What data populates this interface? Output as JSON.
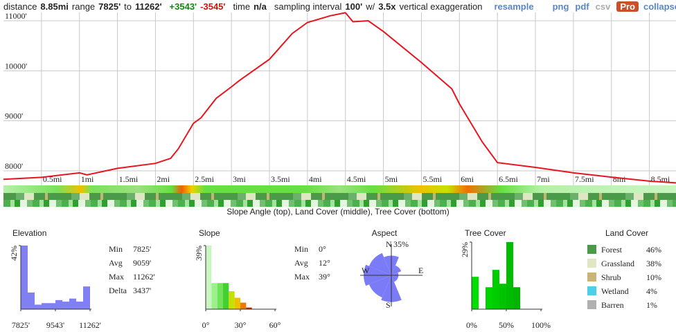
{
  "toolbar": {
    "distance_label": "distance",
    "distance": "8.85mi",
    "range_label": "range",
    "range_min": "7825'",
    "to": "to",
    "range_max": "11262'",
    "gain": "+3543'",
    "loss": "-3545'",
    "time_label": "time",
    "time": "n/a",
    "sampling_label": "sampling interval",
    "interval": "100'",
    "with": "w/",
    "exaggeration": "3.5x",
    "exaggeration_label": "vertical exaggeration",
    "links": [
      "resample",
      "png",
      "pdf",
      "csv"
    ],
    "pro": "Pro",
    "collapse": "collapse"
  },
  "profile": {
    "type": "line",
    "color": "#e8141e",
    "x": [
      0,
      0.5,
      1.0,
      1.1,
      1.5,
      2.0,
      2.2,
      2.3,
      2.5,
      2.6,
      2.8,
      3.0,
      3.1,
      3.5,
      3.8,
      4.0,
      4.3,
      4.5,
      4.6,
      4.8,
      5.0,
      5.5,
      5.9,
      6.0,
      6.3,
      6.5,
      7.0,
      7.5,
      8.0,
      8.5,
      8.85
    ],
    "values": [
      7830,
      7870,
      7960,
      7920,
      8050,
      8150,
      8250,
      8440,
      8950,
      9060,
      9450,
      9680,
      9800,
      10230,
      10745,
      10965,
      11100,
      11160,
      10980,
      11000,
      10785,
      10165,
      9640,
      9340,
      8580,
      8165,
      8070,
      7960,
      7875,
      7795,
      7760
    ],
    "xlim": [
      0,
      8.85
    ],
    "ylim": [
      7710,
      11166
    ],
    "xticks": [
      {
        "value": 0.5,
        "label": "0.5mi"
      },
      {
        "value": 1,
        "label": "1mi"
      },
      {
        "value": 1.5,
        "label": "1.5mi"
      },
      {
        "value": 2,
        "label": "2mi"
      },
      {
        "value": 2.5,
        "label": "2.5mi"
      },
      {
        "value": 3,
        "label": "3mi"
      },
      {
        "value": 3.5,
        "label": "3.5mi"
      },
      {
        "value": 4,
        "label": "4mi"
      },
      {
        "value": 4.5,
        "label": "4.5mi"
      },
      {
        "value": 5,
        "label": "5mi"
      },
      {
        "value": 5.5,
        "label": "5.5mi"
      },
      {
        "value": 6,
        "label": "6mi"
      },
      {
        "value": 6.5,
        "label": "6.5mi"
      },
      {
        "value": 7,
        "label": "7mi"
      },
      {
        "value": 7.5,
        "label": "7.5mi"
      },
      {
        "value": 8,
        "label": "8mi"
      },
      {
        "value": 8.5,
        "label": "8.5mi"
      }
    ],
    "yticks": [
      {
        "value": 8000,
        "label": "8000'"
      },
      {
        "value": 9000,
        "label": "9000'"
      },
      {
        "value": 10000,
        "label": "10000'"
      },
      {
        "value": 11000,
        "label": "11000'"
      }
    ],
    "caption": "Slope Angle (top), Land Cover (middle), Tree Cover (bottom)"
  },
  "elevation": {
    "title": "Elevation",
    "type": "histogram",
    "color": "#8080f2",
    "bins": [
      7825,
      8169,
      8512,
      8856,
      9200,
      9544,
      9887,
      10231,
      10575,
      10918,
      11262
    ],
    "values": [
      42,
      11,
      3,
      4,
      4,
      6,
      5,
      7,
      5,
      15
    ],
    "xlim": [
      7825,
      11262
    ],
    "ylim": [
      0,
      42
    ],
    "yticks": [
      {
        "value": 42,
        "label": "42%"
      }
    ],
    "xticks": [
      {
        "value": 7825,
        "label": "7825'"
      },
      {
        "value": 9543,
        "label": "9543'"
      },
      {
        "value": 11262,
        "label": "11262'"
      }
    ],
    "stats": [
      {
        "label": "Min",
        "value": "7825'"
      },
      {
        "label": "Avg",
        "value": "9059'"
      },
      {
        "label": "Max",
        "value": "11262'"
      },
      {
        "label": "Delta",
        "value": "3437'"
      }
    ]
  },
  "slope": {
    "title": "Slope",
    "type": "histogram",
    "bins": [
      0,
      5,
      10,
      15,
      20,
      25,
      30,
      35,
      40
    ],
    "values": [
      39,
      16,
      16,
      16,
      11,
      7,
      4,
      1
    ],
    "colors": [
      "#c8f5c0",
      "#9cf08a",
      "#6fe25a",
      "#44d030",
      "#c8e000",
      "#f0c000",
      "#f07800",
      "#d02000"
    ],
    "xlim": [
      0,
      60
    ],
    "ylim": [
      0,
      39
    ],
    "yticks": [
      {
        "value": 39,
        "label": "39%"
      }
    ],
    "xticks": [
      {
        "value": 0,
        "label": "0°"
      },
      {
        "value": 30,
        "label": "30°"
      },
      {
        "value": 60,
        "label": "60°"
      }
    ],
    "stats": [
      {
        "label": "Min",
        "value": "0°"
      },
      {
        "label": "Avg",
        "value": "12°"
      },
      {
        "label": "Max",
        "value": "39°"
      }
    ]
  },
  "aspect": {
    "title": "Aspect",
    "type": "rose",
    "color": "#7b7bf7",
    "values": [
      22,
      12,
      8,
      8,
      30,
      27,
      31,
      27
    ],
    "rmax": {
      "value": 35,
      "label": "35%"
    },
    "labels": [
      "N",
      "E",
      "S",
      "W"
    ]
  },
  "tree_cover": {
    "title": "Tree Cover",
    "type": "histogram",
    "bins": [
      0,
      10,
      20,
      30,
      40,
      50,
      60,
      70,
      80,
      90,
      100
    ],
    "values": [
      14,
      0,
      9.5,
      17,
      11,
      29,
      9.5,
      0,
      0,
      0
    ],
    "colors": [
      "#00e000",
      "#00dc00",
      "#00d400",
      "#00cc00",
      "#00c400",
      "#00bc00",
      "#00b400",
      "#00ac00",
      "#00a400",
      "#009c00"
    ],
    "xlim": [
      0,
      100
    ],
    "ylim": [
      0,
      29
    ],
    "yticks": [
      {
        "value": 29,
        "label": "29%"
      }
    ],
    "xticks": [
      {
        "value": 0,
        "label": "0%"
      },
      {
        "value": 50,
        "label": "50%"
      },
      {
        "value": 100,
        "label": "100%"
      }
    ]
  },
  "land_cover": {
    "title": "Land Cover",
    "rows": [
      {
        "name": "Forest",
        "value": "46%",
        "color": "#4a9a4a"
      },
      {
        "name": "Grassland",
        "value": "38%",
        "color": "#dfe6c4"
      },
      {
        "name": "Shrub",
        "value": "10%",
        "color": "#c9b473"
      },
      {
        "name": "Wetland",
        "value": "4%",
        "color": "#4ccfe8"
      },
      {
        "name": "Barren",
        "value": "1%",
        "color": "#b0b0b0"
      }
    ]
  }
}
